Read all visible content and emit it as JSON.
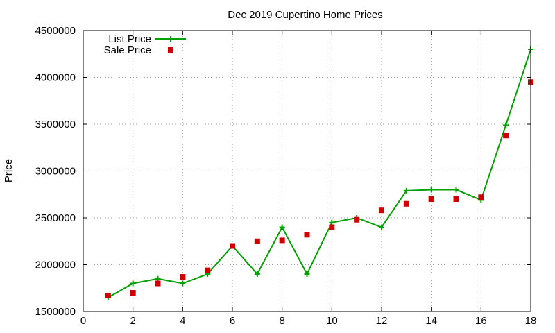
{
  "chart_data": {
    "type": "line",
    "title": "Dec 2019 Cupertino Home Prices",
    "xlabel": "",
    "ylabel": "Price",
    "xlim": [
      0,
      18
    ],
    "ylim": [
      1500000,
      4500000
    ],
    "xticks": [
      0,
      2,
      4,
      6,
      8,
      10,
      12,
      14,
      16,
      18
    ],
    "yticks": [
      1500000,
      2000000,
      2500000,
      3000000,
      3500000,
      4000000,
      4500000
    ],
    "grid": true,
    "legend_position": "top-left",
    "series": [
      {
        "name": "List Price",
        "style": "line+cross",
        "color": "#00a000",
        "x": [
          1,
          2,
          3,
          4,
          5,
          6,
          7,
          8,
          9,
          10,
          11,
          12,
          13,
          14,
          15,
          16,
          17,
          18
        ],
        "y": [
          1650000,
          1800000,
          1850000,
          1800000,
          1900000,
          2200000,
          1900000,
          2400000,
          1900000,
          2450000,
          2500000,
          2400000,
          2790000,
          2800000,
          2800000,
          2690000,
          3490000,
          4300000
        ]
      },
      {
        "name": "Sale Price",
        "style": "square",
        "color": "#cc0000",
        "x": [
          1,
          2,
          3,
          4,
          5,
          6,
          7,
          8,
          9,
          10,
          11,
          12,
          13,
          14,
          15,
          16,
          17,
          18
        ],
        "y": [
          1670000,
          1700000,
          1800000,
          1870000,
          1940000,
          2200000,
          2250000,
          2260000,
          2320000,
          2400000,
          2480000,
          2580000,
          2650000,
          2700000,
          2700000,
          2720000,
          3380000,
          3950000
        ]
      }
    ]
  }
}
